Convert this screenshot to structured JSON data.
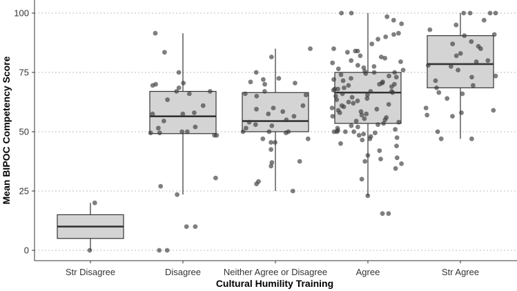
{
  "chart_data": {
    "type": "box-with-jitter",
    "xlabel": "Cultural Humility Training",
    "ylabel": "Mean BIPOC Competency Score",
    "ylim": [
      -5,
      102
    ],
    "yticks": [
      0,
      25,
      50,
      75,
      100
    ],
    "grid": "horizontal-dotted",
    "colors": {
      "box_fill": "#d4d4d4",
      "box_stroke": "#333333",
      "point": "#3a3a3a",
      "grid": "#bbbbbb",
      "axis": "#333333"
    },
    "categories": [
      "Str Disagree",
      "Disagree",
      "Neither Agree or Disagree",
      "Agree",
      "Str Agree"
    ],
    "boxes": [
      {
        "category": "Str Disagree",
        "min": 0,
        "q1": 5,
        "median": 10,
        "q3": 15,
        "max": 20
      },
      {
        "category": "Disagree",
        "min": 23.5,
        "q1": 49.2,
        "median": 56.5,
        "q3": 67,
        "max": 91.5
      },
      {
        "category": "Neither Agree or Disagree",
        "min": 25,
        "q1": 50,
        "median": 54.5,
        "q3": 66.5,
        "max": 85
      },
      {
        "category": "Agree",
        "min": 23,
        "q1": 53.5,
        "median": 66.5,
        "q3": 75,
        "max": 100
      },
      {
        "category": "Str Agree",
        "min": 47,
        "q1": 68.5,
        "median": 78.5,
        "q3": 90.5,
        "max": 100
      }
    ],
    "points": [
      {
        "category": "Str Disagree",
        "values": [
          0,
          20
        ]
      },
      {
        "category": "Disagree",
        "values": [
          91.5,
          83.5,
          75,
          70.5,
          69.5,
          67,
          66,
          67,
          63.5,
          61,
          58,
          57.5,
          57.5,
          54.5,
          52,
          51.5,
          50,
          50,
          49.5,
          49.5,
          48.5,
          48.5,
          70,
          68.5,
          30.5,
          27,
          23.5,
          10,
          10,
          0,
          0
        ]
      },
      {
        "category": "Neither Agree or Disagree",
        "values": [
          85,
          81.5,
          75,
          72.5,
          72,
          71,
          70.5,
          70,
          67,
          66,
          65.5,
          65,
          61,
          60,
          59.5,
          58.5,
          57.5,
          56.5,
          55,
          54,
          53,
          52.5,
          51.5,
          50,
          50,
          50,
          49.5,
          47,
          47,
          45.5,
          45.5,
          42.5,
          37.5,
          37,
          35.5,
          29,
          28,
          25
        ]
      },
      {
        "category": "Agree",
        "values": [
          100,
          100,
          98.5,
          97,
          95.5,
          91.5,
          91,
          90,
          89,
          87,
          85,
          84,
          84,
          83.5,
          82,
          81.5,
          81,
          80,
          79.5,
          79,
          78,
          77.5,
          77,
          76.5,
          76,
          75.5,
          75,
          75,
          74.5,
          74,
          73.5,
          73,
          72.5,
          72,
          71.5,
          71,
          70.5,
          70,
          70,
          69.5,
          69,
          68.5,
          68,
          68,
          67.5,
          67,
          67,
          66.5,
          66,
          65.5,
          65,
          64.5,
          64,
          63.5,
          63,
          62.5,
          62,
          61.5,
          61,
          60.5,
          60,
          59.5,
          59,
          58.5,
          58,
          57.5,
          57,
          56.5,
          56,
          55.5,
          55,
          54.5,
          54,
          53.5,
          53,
          52.5,
          52,
          51.5,
          51,
          50.5,
          50,
          50,
          50,
          50,
          49.5,
          49,
          48.5,
          48,
          47.5,
          47,
          46.5,
          45,
          44,
          42,
          40,
          39,
          38.5,
          37.5,
          36.5,
          34.5,
          30,
          23,
          15.5,
          15.5
        ]
      },
      {
        "category": "Str Agree",
        "values": [
          100,
          100,
          100,
          100,
          97,
          95,
          93,
          91,
          90.5,
          88,
          87,
          86,
          85,
          83,
          82,
          80,
          79.5,
          78,
          77.5,
          76,
          73.5,
          73,
          71.5,
          69.5,
          68.5,
          66.5,
          66,
          64,
          60,
          59,
          58,
          57,
          56.5,
          50,
          47,
          47
        ]
      }
    ]
  }
}
